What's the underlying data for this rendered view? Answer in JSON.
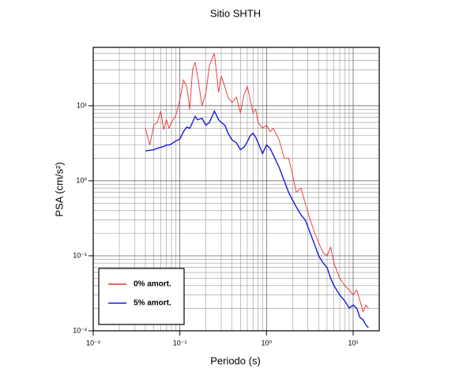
{
  "chart_data": {
    "type": "line",
    "title": "Sitio SHTH",
    "x_label": "Periodo (s)",
    "y_label": "PSA (cm/s²)",
    "log_x": true,
    "log_y": true,
    "grid": true,
    "legend": "lower left",
    "xlim": [
      0.01,
      20
    ],
    "ylim": [
      0.01,
      60
    ],
    "xticks": [
      {
        "value": 0.01,
        "label": "10⁻²"
      },
      {
        "value": 0.1,
        "label": "10⁻¹"
      },
      {
        "value": 1,
        "label": "10⁰"
      },
      {
        "value": 10,
        "label": "10¹"
      }
    ],
    "yticks": [
      {
        "value": 0.01,
        "label": "10⁻²"
      },
      {
        "value": 0.1,
        "label": "10⁻¹"
      },
      {
        "value": 1,
        "label": "10⁰"
      },
      {
        "value": 10,
        "label": "10¹"
      }
    ],
    "xminorticks": [
      0.02,
      0.03,
      0.04,
      0.05,
      0.06,
      0.07,
      0.08,
      0.09,
      0.2,
      0.3,
      0.4,
      0.5,
      0.6,
      0.7,
      0.8,
      0.9,
      2,
      3,
      4,
      5,
      6,
      7,
      8,
      9,
      20
    ],
    "yminorticks": [
      0.02,
      0.03,
      0.04,
      0.05,
      0.06,
      0.07,
      0.08,
      0.09,
      0.2,
      0.3,
      0.4,
      0.5,
      0.6,
      0.7,
      0.8,
      0.9,
      2,
      3,
      4,
      5,
      6,
      7,
      8,
      9,
      20,
      30,
      40,
      50
    ],
    "x": [
      0.04,
      0.045,
      0.05,
      0.055,
      0.06,
      0.065,
      0.07,
      0.075,
      0.08,
      0.09,
      0.1,
      0.11,
      0.12,
      0.13,
      0.14,
      0.15,
      0.16,
      0.18,
      0.2,
      0.22,
      0.25,
      0.28,
      0.3,
      0.33,
      0.36,
      0.4,
      0.45,
      0.5,
      0.55,
      0.6,
      0.65,
      0.7,
      0.75,
      0.8,
      0.9,
      1.0,
      1.1,
      1.2,
      1.4,
      1.6,
      1.8,
      2.0,
      2.2,
      2.5,
      2.8,
      3.2,
      3.6,
      4.0,
      4.5,
      5.0,
      5.5,
      6.0,
      7.0,
      8.0,
      9.0,
      10,
      11,
      12,
      13,
      14,
      15
    ],
    "series": [
      {
        "name": "0% amort.",
        "color": "#e8312f",
        "values": [
          5.0,
          3.0,
          5.5,
          6.0,
          8.5,
          4.8,
          6.5,
          5.0,
          6.0,
          7.5,
          12,
          22,
          18,
          9,
          30,
          38,
          25,
          10,
          15,
          35,
          50,
          15,
          25,
          18,
          13,
          11,
          13,
          8,
          14,
          18,
          12,
          8,
          9,
          6,
          5,
          5.5,
          4.5,
          5,
          3.5,
          2.0,
          2.0,
          1.2,
          0.7,
          0.8,
          0.5,
          0.3,
          0.2,
          0.15,
          0.11,
          0.1,
          0.13,
          0.08,
          0.05,
          0.04,
          0.035,
          0.03,
          0.035,
          0.025,
          0.018,
          0.022,
          0.02
        ]
      },
      {
        "name": "5% amort.",
        "color": "#1a1adb",
        "values": [
          2.5,
          2.55,
          2.6,
          2.7,
          2.8,
          2.85,
          3.0,
          3.0,
          3.1,
          3.4,
          3.6,
          4.5,
          5.2,
          5.0,
          6.0,
          7.2,
          6.5,
          6.8,
          5.5,
          6.0,
          8.5,
          6.5,
          6.0,
          5.5,
          4.3,
          3.5,
          3.2,
          2.6,
          2.8,
          3.3,
          4.0,
          4.3,
          3.8,
          3.2,
          2.3,
          3.0,
          2.7,
          2.2,
          1.5,
          1.0,
          0.7,
          0.55,
          0.45,
          0.35,
          0.3,
          0.2,
          0.14,
          0.1,
          0.08,
          0.07,
          0.05,
          0.04,
          0.03,
          0.025,
          0.02,
          0.022,
          0.02,
          0.015,
          0.014,
          0.012,
          0.011
        ]
      }
    ]
  }
}
